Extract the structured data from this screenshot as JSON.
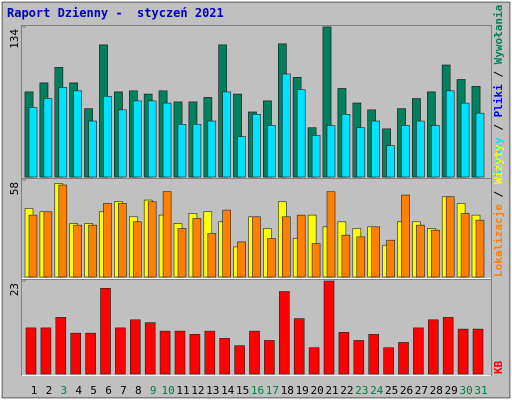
{
  "chart_data": {
    "type": "bar",
    "title": "Raport Dzienny -  styczeń 2021",
    "legend_separator": " / ",
    "categories": [
      "1",
      "2",
      "3",
      "4",
      "5",
      "6",
      "7",
      "8",
      "9",
      "10",
      "11",
      "12",
      "13",
      "14",
      "15",
      "16",
      "17",
      "18",
      "19",
      "20",
      "21",
      "22",
      "23",
      "24",
      "25",
      "26",
      "27",
      "28",
      "29",
      "30",
      "31"
    ],
    "category_colors": [
      "#000000",
      "#000000",
      "#008040",
      "#000000",
      "#000000",
      "#000000",
      "#000000",
      "#000000",
      "#008040",
      "#008040",
      "#000000",
      "#000000",
      "#000000",
      "#000000",
      "#000000",
      "#008040",
      "#008040",
      "#000000",
      "#000000",
      "#000000",
      "#000000",
      "#000000",
      "#008040",
      "#008040",
      "#000000",
      "#000000",
      "#000000",
      "#000000",
      "#000000",
      "#008040",
      "#008040"
    ],
    "panels": [
      {
        "ylim": [
          0,
          134
        ],
        "yticks": [
          134
        ],
        "series": [
          {
            "name": "Wywołania",
            "color": "#00805c",
            "values": [
              76,
              84,
              98,
              84,
              61,
              118,
              76,
              77,
              74,
              77,
              67,
              67,
              71,
              118,
              74,
              58,
              68,
              119,
              89,
              44,
              134,
              79,
              66,
              60,
              43,
              61,
              70,
              76,
              100,
              87,
              81
            ]
          },
          {
            "name": "Pliki",
            "color": "#0000ff",
            "values": [
              76,
              84,
              98,
              84,
              61,
              118,
              76,
              77,
              74,
              77,
              67,
              67,
              71,
              118,
              74,
              58,
              68,
              119,
              89,
              44,
              134,
              79,
              66,
              60,
              43,
              61,
              70,
              76,
              100,
              87,
              81
            ]
          },
          {
            "name": "Strony",
            "color": "#00e0ff",
            "values": [
              62,
              70,
              80,
              77,
              50,
              72,
              60,
              68,
              68,
              66,
              47,
              47,
              50,
              76,
              36,
              56,
              46,
              92,
              78,
              37,
              46,
              56,
              44,
              50,
              28,
              46,
              50,
              46,
              77,
              66,
              57
            ]
          }
        ]
      },
      {
        "ylim": [
          0,
          58
        ],
        "yticks": [
          58
        ],
        "series": [
          {
            "name": "Wizyty",
            "color": "#ffff00",
            "values": [
              41,
              39,
              56,
              32,
              32,
              39,
              45,
              36,
              46,
              37,
              32,
              38,
              39,
              33,
              18,
              36,
              29,
              45,
              23,
              37,
              30,
              33,
              29,
              30,
              19,
              33,
              33,
              29,
              48,
              44,
              37
            ]
          },
          {
            "name": "Lokalizacje",
            "color": "#ff8000",
            "values": [
              37,
              39,
              55,
              31,
              31,
              44,
              44,
              33,
              45,
              51,
              29,
              35,
              26,
              40,
              21,
              36,
              23,
              36,
              37,
              20,
              51,
              25,
              24,
              30,
              22,
              49,
              31,
              28,
              48,
              38,
              34
            ]
          }
        ]
      },
      {
        "ylim": [
          0,
          23
        ],
        "yticks": [
          23
        ],
        "series": [
          {
            "name": "KB",
            "color": "#ff0000",
            "values": [
              11.4,
              11.4,
              14,
              10.1,
              10.1,
              21.2,
              11.4,
              13.4,
              12.7,
              10.6,
              10.6,
              9.8,
              10.6,
              8.8,
              7,
              10.6,
              8.3,
              20.4,
              13.7,
              6.5,
              23,
              10.3,
              8.3,
              9.8,
              6.5,
              7.8,
              11.4,
              13.4,
              14,
              11.1,
              11.1
            ]
          }
        ]
      }
    ]
  }
}
